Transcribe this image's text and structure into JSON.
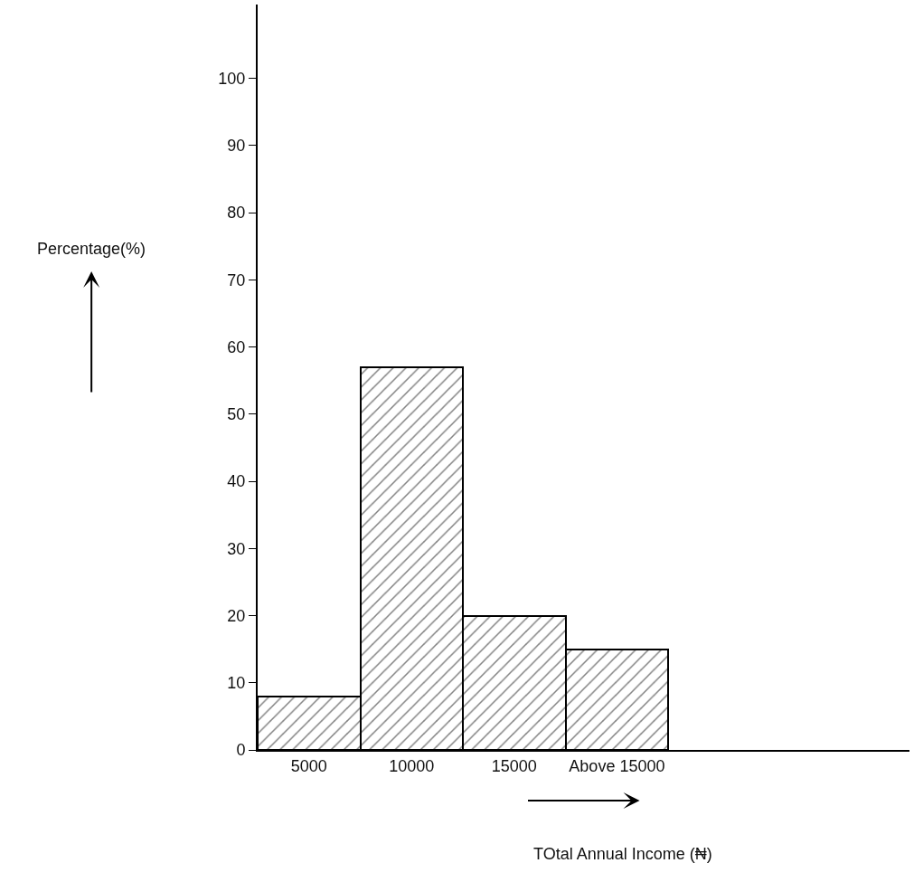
{
  "chart_data": {
    "type": "bar",
    "xlabel": "TOtal Annual Income (₦)",
    "ylabel": "Percentage(%)",
    "categories": [
      "5000",
      "10000",
      "15000",
      "Above 15000"
    ],
    "values": [
      8,
      57,
      20,
      15
    ],
    "color": "#000000",
    "ylim": [
      0,
      111
    ],
    "yticks": [
      0,
      10,
      20,
      30,
      40,
      50,
      60,
      70,
      80,
      90,
      100
    ]
  }
}
